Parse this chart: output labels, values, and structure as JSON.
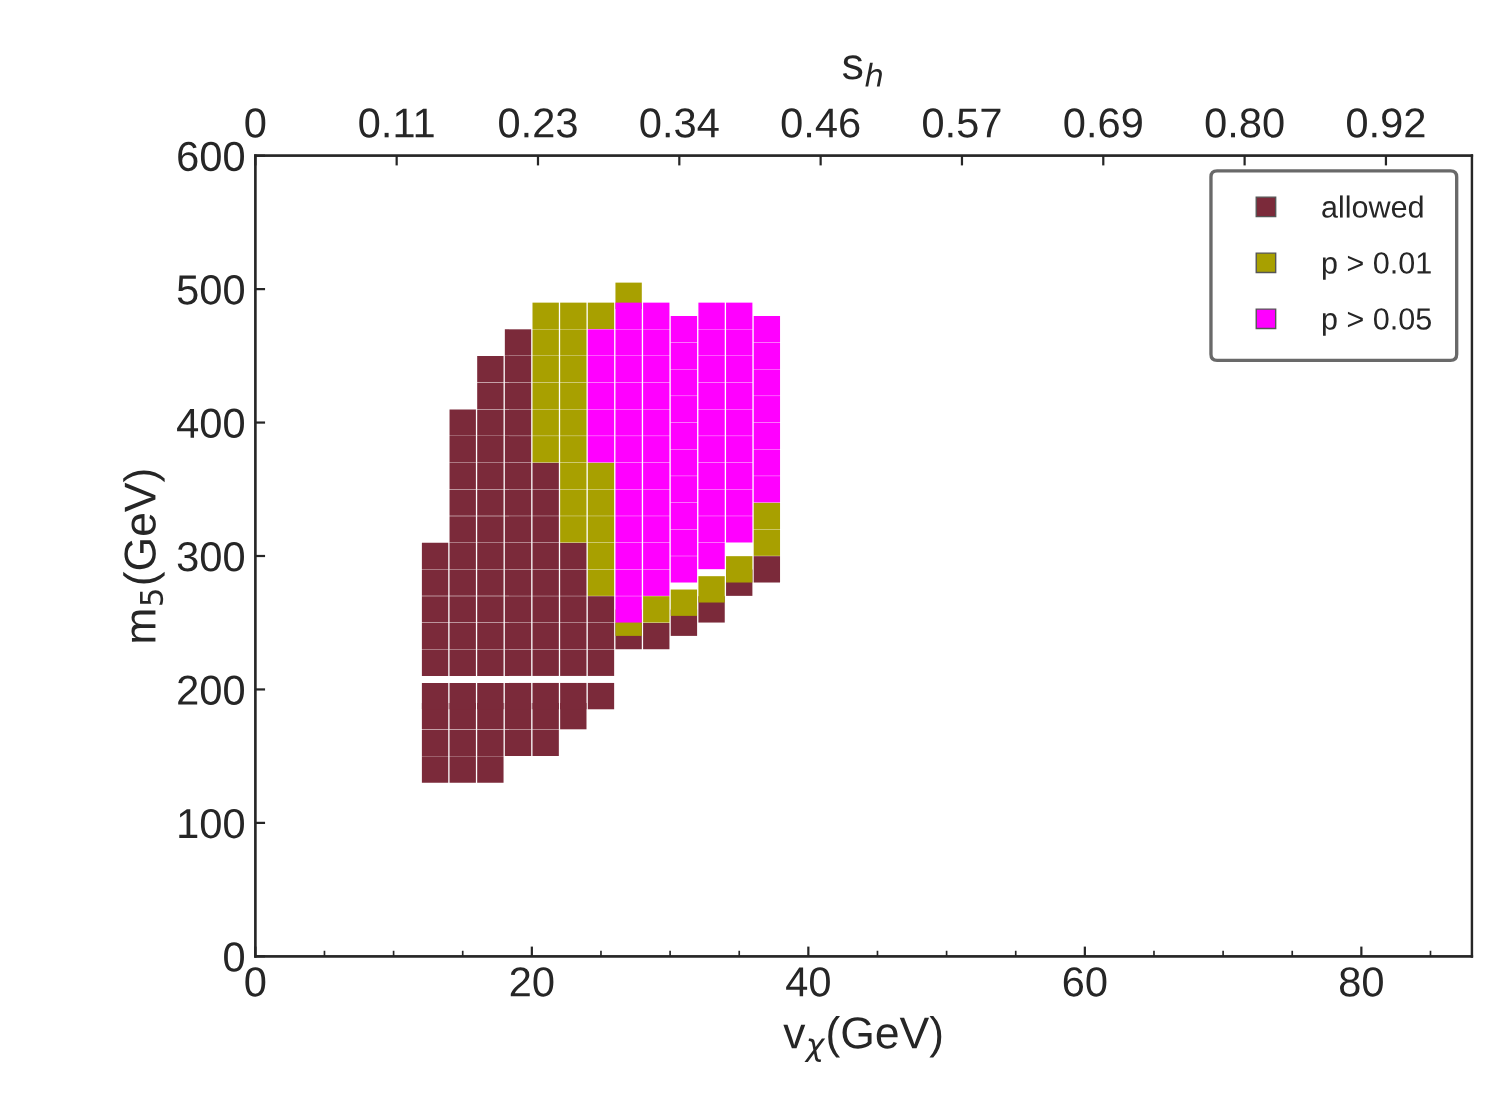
{
  "chart_data": {
    "type": "scatter",
    "xlabel": "v$_{χ}$(GeV)",
    "ylabel": "m$_{5}$(GeV)",
    "x2label": "s$_{h}$",
    "xlim": [
      0,
      88
    ],
    "xticks": [
      0,
      20,
      40,
      60,
      80
    ],
    "ylim": [
      0,
      600
    ],
    "yticks": [
      0,
      100,
      200,
      300,
      400,
      500,
      600
    ],
    "x2lim": [
      0,
      0.99
    ],
    "x2ticks": [
      0,
      {
        "value": 0.115,
        "label": "0.11"
      },
      {
        "value": 0.23,
        "label": "0.23"
      },
      {
        "value": 0.345,
        "label": "0.34"
      },
      {
        "value": 0.46,
        "label": "0.46"
      },
      {
        "value": 0.575,
        "label": "0.57"
      },
      {
        "value": 0.69,
        "label": "0.69"
      },
      {
        "value": 0.805,
        "label": "0.80"
      },
      {
        "value": 0.92,
        "label": "0.92"
      }
    ],
    "marker": "square",
    "grid": false,
    "legend": "top right",
    "series": [
      {
        "name": "allowed",
        "color": "#7b2a3a",
        "x": [
          13,
          13,
          13,
          13,
          13,
          13,
          13,
          13,
          13,
          15,
          15,
          15,
          15,
          15,
          15,
          15,
          15,
          15,
          15,
          15,
          15,
          15,
          15,
          17,
          17,
          17,
          17,
          17,
          17,
          17,
          17,
          17,
          17,
          17,
          17,
          17,
          17,
          17,
          17,
          19,
          19,
          19,
          19,
          19,
          19,
          19,
          19,
          19,
          19,
          19,
          19,
          19,
          19,
          19,
          19,
          21,
          21,
          21,
          21,
          21,
          21,
          21,
          21,
          21,
          21,
          21,
          23,
          23,
          23,
          23,
          23,
          23,
          23,
          25,
          25,
          25,
          25,
          27,
          29,
          31,
          33,
          35,
          37
        ],
        "values": [
          140,
          160,
          180,
          195,
          220,
          240,
          260,
          280,
          300,
          140,
          160,
          180,
          195,
          220,
          240,
          260,
          280,
          300,
          320,
          340,
          360,
          380,
          400,
          140,
          160,
          180,
          195,
          220,
          240,
          260,
          280,
          300,
          320,
          340,
          360,
          380,
          400,
          420,
          440,
          160,
          180,
          195,
          220,
          240,
          260,
          280,
          300,
          320,
          340,
          360,
          380,
          400,
          420,
          440,
          460,
          160,
          180,
          195,
          220,
          240,
          260,
          280,
          300,
          320,
          340,
          360,
          180,
          195,
          220,
          240,
          260,
          280,
          300,
          195,
          220,
          240,
          260,
          240,
          240,
          250,
          260,
          280,
          290
        ]
      },
      {
        "name": "p > 0.01",
        "color": "#a8a000",
        "x": [
          21,
          21,
          21,
          21,
          21,
          21,
          23,
          23,
          23,
          23,
          23,
          23,
          23,
          23,
          23,
          25,
          25,
          25,
          25,
          25,
          25,
          27,
          27,
          29,
          31,
          33,
          35,
          37,
          37
        ],
        "values": [
          380,
          400,
          420,
          440,
          460,
          480,
          320,
          340,
          360,
          380,
          400,
          420,
          440,
          460,
          480,
          280,
          300,
          320,
          340,
          360,
          480,
          250,
          495,
          260,
          265,
          275,
          290,
          310,
          330
        ]
      },
      {
        "name": "p > 0.05",
        "color": "#ff00ff",
        "x": [
          25,
          25,
          25,
          25,
          25,
          27,
          27,
          27,
          27,
          27,
          27,
          27,
          27,
          27,
          27,
          27,
          27,
          29,
          29,
          29,
          29,
          29,
          29,
          29,
          29,
          29,
          29,
          29,
          31,
          31,
          31,
          31,
          31,
          31,
          31,
          31,
          31,
          31,
          33,
          33,
          33,
          33,
          33,
          33,
          33,
          33,
          33,
          33,
          35,
          35,
          35,
          35,
          35,
          35,
          35,
          35,
          35,
          37,
          37,
          37,
          37,
          37,
          37,
          37
        ],
        "values": [
          380,
          400,
          420,
          440,
          460,
          260,
          280,
          300,
          320,
          340,
          360,
          380,
          400,
          420,
          440,
          460,
          480,
          280,
          300,
          320,
          340,
          360,
          380,
          400,
          420,
          440,
          460,
          480,
          290,
          310,
          330,
          350,
          370,
          390,
          410,
          430,
          450,
          470,
          300,
          320,
          340,
          360,
          380,
          400,
          420,
          440,
          460,
          480,
          320,
          340,
          360,
          380,
          400,
          420,
          440,
          460,
          480,
          350,
          370,
          390,
          410,
          430,
          450,
          470
        ]
      }
    ]
  }
}
